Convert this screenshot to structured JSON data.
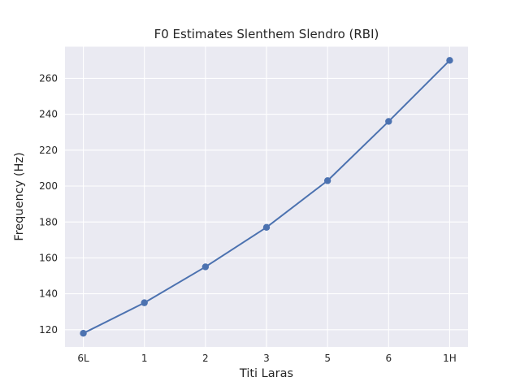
{
  "chart_data": {
    "type": "line",
    "title": "F0 Estimates Slenthem Slendro (RBI)",
    "xlabel": "Titi Laras",
    "ylabel": "Frequency (Hz)",
    "categories": [
      "6L",
      "1",
      "2",
      "3",
      "5",
      "6",
      "1H"
    ],
    "series": [
      {
        "name": "F0",
        "values": [
          118,
          135,
          155,
          177,
          203,
          236,
          270
        ]
      }
    ],
    "ylim": [
      110.4,
      277.6
    ],
    "yticks": [
      120,
      140,
      160,
      180,
      200,
      220,
      240,
      260
    ],
    "grid": true,
    "legend": "none",
    "colors": {
      "line": "#4C72B0",
      "marker": "#4C72B0",
      "plot_background": "#EAEAF2",
      "gridline": "#FFFFFF",
      "text": "#262626",
      "figure_background": "#FFFFFF"
    }
  }
}
